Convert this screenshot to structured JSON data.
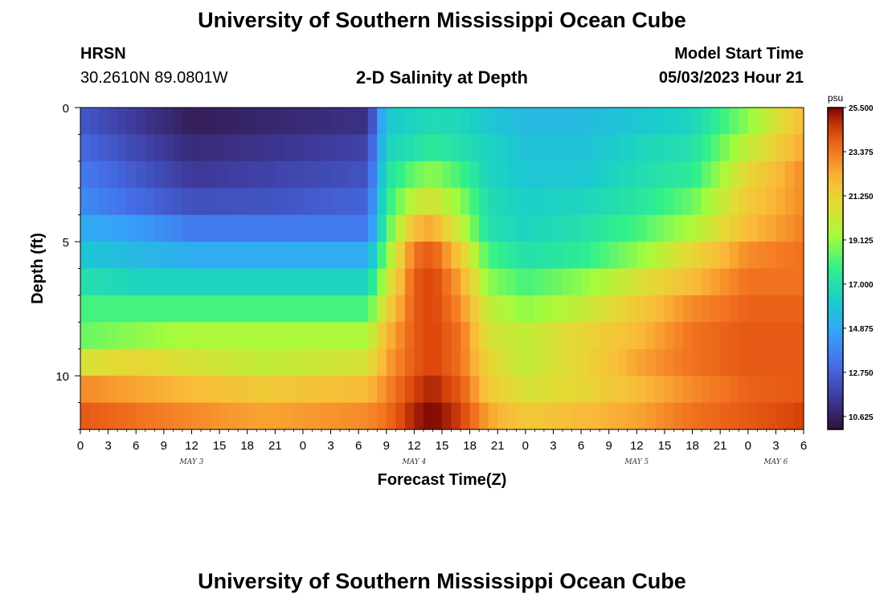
{
  "header": {
    "title": "University of Southern Mississippi Ocean Cube",
    "station": "HRSN",
    "coords": "30.2610N  89.0801W",
    "subtitle": "2-D Salinity at Depth",
    "model_start_label": "Model Start Time",
    "model_start_value": "05/03/2023 Hour 21"
  },
  "footer": {
    "title": "University of Southern Mississippi Ocean Cube"
  },
  "chart_data": {
    "type": "heatmap",
    "xlabel": "Forecast Time(Z)",
    "ylabel": "Depth (ft)",
    "x_hours_range": [
      0,
      78
    ],
    "x_tick_labels": [
      "0",
      "3",
      "6",
      "9",
      "12",
      "15",
      "18",
      "21",
      "0",
      "3",
      "6",
      "9",
      "12",
      "15",
      "18",
      "21",
      "0",
      "3",
      "6",
      "9",
      "12",
      "15",
      "18",
      "21",
      "0",
      "3",
      "6"
    ],
    "x_date_labels": [
      {
        "label": "MAY 3",
        "hour": 12
      },
      {
        "label": "MAY 4",
        "hour": 36
      },
      {
        "label": "MAY 5",
        "hour": 60
      },
      {
        "label": "MAY 6",
        "hour": 75
      }
    ],
    "y_range": [
      0,
      12
    ],
    "y_ticks": [
      0,
      5,
      10
    ],
    "depth_levels": 12,
    "colorbar": {
      "unit": "psu",
      "min": 10.0,
      "max": 25.5,
      "tick_values": [
        25.5,
        23.375,
        21.25,
        19.125,
        17.0,
        14.875,
        12.75,
        10.625
      ],
      "tick_labels": [
        "25.500",
        "23.375",
        "21.250",
        "19.125",
        "17.000",
        "14.875",
        "12.750",
        "10.625"
      ]
    },
    "salinity_keyframes": {
      "hours": [
        0,
        6,
        12,
        20,
        31,
        33,
        36,
        38,
        41,
        44,
        48,
        54,
        60,
        66,
        72,
        78
      ],
      "levels": [
        [
          12.5,
          11.5,
          10.5,
          10.8,
          11.2,
          16.0,
          16.5,
          16.8,
          16.6,
          16.0,
          15.5,
          15.5,
          16.0,
          16.5,
          19.0,
          22.0
        ],
        [
          13.0,
          12.0,
          11.0,
          11.3,
          11.8,
          16.5,
          17.0,
          17.5,
          17.0,
          16.5,
          15.8,
          15.8,
          16.5,
          17.0,
          20.0,
          22.5
        ],
        [
          13.5,
          12.5,
          11.5,
          11.8,
          12.3,
          17.0,
          18.5,
          19.0,
          18.0,
          16.5,
          16.0,
          16.0,
          16.8,
          17.5,
          21.0,
          23.0
        ],
        [
          14.0,
          13.0,
          12.2,
          12.3,
          12.8,
          17.5,
          20.0,
          20.5,
          19.0,
          16.8,
          16.3,
          16.5,
          17.2,
          18.5,
          21.5,
          23.0
        ],
        [
          15.0,
          14.5,
          13.5,
          13.5,
          13.5,
          18.0,
          22.0,
          22.5,
          20.0,
          17.0,
          16.5,
          17.0,
          18.0,
          19.5,
          22.0,
          23.2
        ],
        [
          16.0,
          15.5,
          15.0,
          15.0,
          15.0,
          19.0,
          23.5,
          24.0,
          21.5,
          18.0,
          17.0,
          17.5,
          19.0,
          21.0,
          23.0,
          23.5
        ],
        [
          17.0,
          16.5,
          16.5,
          16.5,
          16.5,
          20.0,
          24.0,
          24.5,
          22.5,
          19.0,
          18.0,
          19.0,
          20.5,
          22.0,
          23.5,
          23.5
        ],
        [
          18.0,
          18.0,
          18.0,
          18.0,
          18.0,
          21.0,
          24.0,
          24.5,
          23.0,
          20.0,
          19.0,
          20.0,
          21.5,
          23.0,
          23.8,
          23.8
        ],
        [
          18.5,
          19.0,
          19.5,
          19.5,
          19.5,
          22.0,
          24.0,
          24.5,
          23.5,
          20.5,
          20.0,
          21.0,
          22.0,
          23.5,
          24.0,
          24.0
        ],
        [
          20.5,
          21.0,
          20.5,
          20.0,
          20.5,
          22.5,
          24.0,
          24.5,
          23.5,
          21.0,
          20.0,
          21.0,
          22.5,
          23.5,
          24.0,
          24.0
        ],
        [
          23.0,
          22.5,
          22.0,
          21.5,
          22.0,
          23.0,
          24.5,
          25.0,
          24.0,
          21.5,
          20.5,
          21.0,
          22.0,
          23.0,
          23.8,
          24.0
        ],
        [
          24.0,
          23.5,
          23.0,
          22.5,
          23.0,
          23.5,
          25.0,
          25.5,
          24.5,
          22.5,
          21.5,
          22.0,
          22.5,
          23.5,
          24.0,
          24.5
        ]
      ]
    }
  }
}
